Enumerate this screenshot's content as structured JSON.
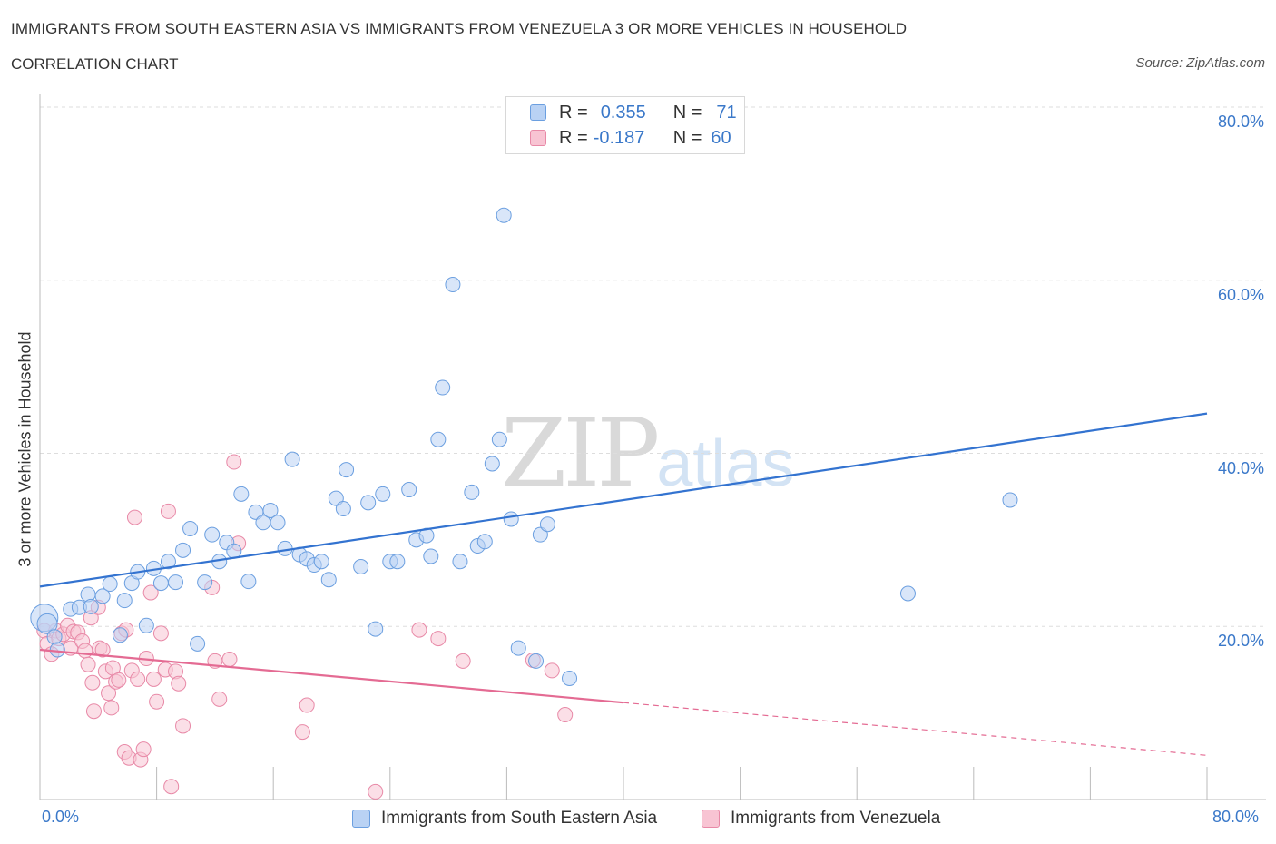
{
  "header": {
    "title": "IMMIGRANTS FROM SOUTH EASTERN ASIA VS IMMIGRANTS FROM VENEZUELA 3 OR MORE VEHICLES IN HOUSEHOLD",
    "subtitle": "CORRELATION CHART",
    "source": "Source: ZipAtlas.com"
  },
  "watermark": {
    "zip": "ZIP",
    "atlas": "atlas"
  },
  "legend": {
    "rows": [
      {
        "r_label": "R =",
        "r_value": "0.355",
        "n_label": "N =",
        "n_value": "71"
      },
      {
        "r_label": "R =",
        "r_value": "-0.187",
        "n_label": "N =",
        "n_value": "60"
      }
    ]
  },
  "bottom_legend": {
    "series1": "Immigrants from South Eastern Asia",
    "series2": "Immigrants from Venezuela"
  },
  "colors": {
    "blue_fill": "#b9d2f4",
    "blue_stroke": "#6b9fe0",
    "blue_line": "#3373d0",
    "pink_fill": "#f8c4d3",
    "pink_stroke": "#e889a7",
    "pink_line": "#e46b93",
    "axis_text": "#3a78c9",
    "grid": "#dddddd"
  },
  "chart_data": {
    "type": "scatter",
    "title": "IMMIGRANTS FROM SOUTH EASTERN ASIA VS IMMIGRANTS FROM VENEZUELA 3 OR MORE VEHICLES IN HOUSEHOLD",
    "subtitle": "CORRELATION CHART",
    "xlabel": "",
    "ylabel": "3 or more Vehicles in Household",
    "xlim": [
      0,
      80
    ],
    "ylim": [
      0,
      80
    ],
    "x_tick_labels": [
      "0.0%",
      "80.0%"
    ],
    "y_tick_values": [
      20,
      40,
      60,
      80
    ],
    "y_tick_labels": [
      "20.0%",
      "40.0%",
      "60.0%",
      "80.0%"
    ],
    "grid": true,
    "legend_position": "top-center",
    "series": [
      {
        "name": "Immigrants from South Eastern Asia",
        "R": 0.355,
        "N": 71,
        "trend": {
          "x": [
            0,
            80
          ],
          "y": [
            24.6,
            44.6
          ]
        },
        "points": [
          [
            0.3,
            21.0
          ],
          [
            0.5,
            20.3
          ],
          [
            1.0,
            18.8
          ],
          [
            1.2,
            17.3
          ],
          [
            2.1,
            22.0
          ],
          [
            2.7,
            22.2
          ],
          [
            3.3,
            23.7
          ],
          [
            3.5,
            22.3
          ],
          [
            4.3,
            23.5
          ],
          [
            4.8,
            24.9
          ],
          [
            5.5,
            19.0
          ],
          [
            5.8,
            23.0
          ],
          [
            6.3,
            25.0
          ],
          [
            6.7,
            26.3
          ],
          [
            7.3,
            20.1
          ],
          [
            7.8,
            26.7
          ],
          [
            8.3,
            25.0
          ],
          [
            8.8,
            27.5
          ],
          [
            9.3,
            25.1
          ],
          [
            9.8,
            28.8
          ],
          [
            10.3,
            31.3
          ],
          [
            10.8,
            18.0
          ],
          [
            11.3,
            25.1
          ],
          [
            11.8,
            30.6
          ],
          [
            12.3,
            27.5
          ],
          [
            12.8,
            29.7
          ],
          [
            13.3,
            28.7
          ],
          [
            13.8,
            35.3
          ],
          [
            14.3,
            25.2
          ],
          [
            14.8,
            33.2
          ],
          [
            15.3,
            32.0
          ],
          [
            15.8,
            33.4
          ],
          [
            16.3,
            32.0
          ],
          [
            16.8,
            29.0
          ],
          [
            17.3,
            39.3
          ],
          [
            17.8,
            28.3
          ],
          [
            18.3,
            27.8
          ],
          [
            18.8,
            27.1
          ],
          [
            19.3,
            27.5
          ],
          [
            19.8,
            25.4
          ],
          [
            20.3,
            34.8
          ],
          [
            20.8,
            33.6
          ],
          [
            21.0,
            38.1
          ],
          [
            22.0,
            26.9
          ],
          [
            22.5,
            34.3
          ],
          [
            23.0,
            19.7
          ],
          [
            23.5,
            35.3
          ],
          [
            24.0,
            27.5
          ],
          [
            24.5,
            27.5
          ],
          [
            25.3,
            35.8
          ],
          [
            25.8,
            30.0
          ],
          [
            26.5,
            30.5
          ],
          [
            26.8,
            28.1
          ],
          [
            27.3,
            41.6
          ],
          [
            27.6,
            47.6
          ],
          [
            28.3,
            59.5
          ],
          [
            28.8,
            27.5
          ],
          [
            29.6,
            35.5
          ],
          [
            30.0,
            29.3
          ],
          [
            30.5,
            29.8
          ],
          [
            31.0,
            38.8
          ],
          [
            31.5,
            41.6
          ],
          [
            31.8,
            67.5
          ],
          [
            32.3,
            32.4
          ],
          [
            32.8,
            17.5
          ],
          [
            34.0,
            16.0
          ],
          [
            34.3,
            30.6
          ],
          [
            34.8,
            31.8
          ],
          [
            36.3,
            14.0
          ],
          [
            59.5,
            23.8
          ],
          [
            66.5,
            34.6
          ]
        ]
      },
      {
        "name": "Immigrants from Venezuela",
        "R": -0.187,
        "N": 60,
        "trend": {
          "x": [
            0,
            40
          ],
          "y": [
            17.3,
            11.2
          ]
        },
        "trend_dashed": {
          "x": [
            40,
            80
          ],
          "y": [
            11.2,
            5.1
          ]
        },
        "points": [
          [
            0.3,
            19.5
          ],
          [
            0.5,
            18.0
          ],
          [
            0.8,
            16.8
          ],
          [
            1.1,
            19.5
          ],
          [
            1.3,
            18.6
          ],
          [
            1.6,
            19.1
          ],
          [
            1.9,
            20.1
          ],
          [
            2.1,
            17.5
          ],
          [
            2.3,
            19.4
          ],
          [
            2.6,
            19.3
          ],
          [
            2.9,
            18.3
          ],
          [
            3.1,
            17.2
          ],
          [
            3.3,
            15.6
          ],
          [
            3.5,
            21.0
          ],
          [
            3.6,
            13.5
          ],
          [
            3.7,
            10.2
          ],
          [
            4.0,
            22.2
          ],
          [
            4.1,
            17.5
          ],
          [
            4.3,
            17.3
          ],
          [
            4.5,
            14.8
          ],
          [
            4.7,
            12.3
          ],
          [
            4.9,
            10.6
          ],
          [
            5.0,
            15.2
          ],
          [
            5.2,
            13.6
          ],
          [
            5.4,
            13.8
          ],
          [
            5.6,
            19.2
          ],
          [
            5.8,
            5.5
          ],
          [
            5.9,
            19.6
          ],
          [
            6.1,
            4.8
          ],
          [
            6.3,
            14.9
          ],
          [
            6.5,
            32.6
          ],
          [
            6.7,
            13.9
          ],
          [
            6.9,
            4.6
          ],
          [
            7.1,
            5.8
          ],
          [
            7.3,
            16.3
          ],
          [
            7.6,
            23.9
          ],
          [
            7.8,
            13.9
          ],
          [
            8.0,
            11.3
          ],
          [
            8.3,
            19.2
          ],
          [
            8.6,
            15.0
          ],
          [
            8.8,
            33.3
          ],
          [
            9.0,
            1.5
          ],
          [
            9.3,
            14.8
          ],
          [
            9.5,
            13.4
          ],
          [
            9.8,
            8.5
          ],
          [
            11.8,
            24.5
          ],
          [
            12.0,
            16.0
          ],
          [
            12.3,
            11.6
          ],
          [
            13.0,
            16.2
          ],
          [
            13.3,
            39.0
          ],
          [
            13.6,
            29.6
          ],
          [
            18.0,
            7.8
          ],
          [
            18.3,
            10.9
          ],
          [
            23.0,
            0.9
          ],
          [
            26.0,
            19.6
          ],
          [
            27.3,
            18.6
          ],
          [
            29.0,
            16.0
          ],
          [
            33.8,
            16.1
          ],
          [
            35.1,
            14.9
          ],
          [
            36.0,
            9.8
          ]
        ]
      }
    ]
  }
}
